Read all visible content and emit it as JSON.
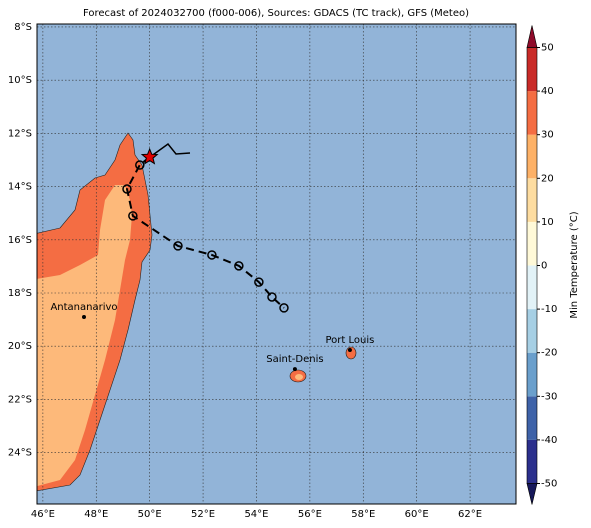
{
  "map": {
    "title": "Forecast of 2024032700 (f000-006), Sources: GDACS (TC track), GFS (Meteo)",
    "lonlim": [
      45.78,
      63.72
    ],
    "latlim": [
      -7.89,
      -25.93
    ],
    "xticks": [
      {
        "value": 46,
        "label": "46°E"
      },
      {
        "value": 48,
        "label": "48°E"
      },
      {
        "value": 50,
        "label": "50°E"
      },
      {
        "value": 52,
        "label": "52°E"
      },
      {
        "value": 54,
        "label": "54°E"
      },
      {
        "value": 56,
        "label": "56°E"
      },
      {
        "value": 58,
        "label": "58°E"
      },
      {
        "value": 60,
        "label": "60°E"
      },
      {
        "value": 62,
        "label": "62°E"
      }
    ],
    "yticks": [
      {
        "value": -8,
        "label": "8°S"
      },
      {
        "value": -10,
        "label": "10°S"
      },
      {
        "value": -12,
        "label": "12°S"
      },
      {
        "value": -14,
        "label": "14°S"
      },
      {
        "value": -16,
        "label": "16°S"
      },
      {
        "value": -18,
        "label": "18°S"
      },
      {
        "value": -20,
        "label": "20°S"
      },
      {
        "value": -22,
        "label": "22°S"
      },
      {
        "value": -24,
        "label": "24°S"
      }
    ],
    "places": [
      {
        "label": "Antananarivo",
        "lon": 47.54,
        "lat": -18.9
      },
      {
        "label": "Saint-Denis",
        "lon": 55.44,
        "lat": -20.86
      },
      {
        "label": "Port Louis",
        "lon": 57.5,
        "lat": -20.14
      }
    ],
    "track": {
      "lon": [
        50.0,
        49.63,
        49.15,
        49.37,
        51.06,
        52.33,
        53.34,
        54.09,
        54.58,
        55.03
      ],
      "lat": [
        -12.89,
        -13.19,
        -14.09,
        -15.1,
        -16.23,
        -16.57,
        -16.98,
        -17.59,
        -18.15,
        -18.56
      ]
    },
    "colorbar": {
      "label": "Min Temperature (°C)",
      "lim": [
        -50,
        50
      ],
      "ticks": [
        -50,
        -40,
        -30,
        -20,
        -10,
        0,
        10,
        20,
        30,
        40,
        50
      ],
      "colors": [
        "#2b2f8c",
        "#3e62a8",
        "#6a9fcc",
        "#a6cfe4",
        "#e2f2f7",
        "#fff9d8",
        "#fddca0",
        "#fdb167",
        "#f46d43",
        "#c92b28"
      ],
      "under": "#16185a",
      "over": "#8e0b2a"
    }
  }
}
